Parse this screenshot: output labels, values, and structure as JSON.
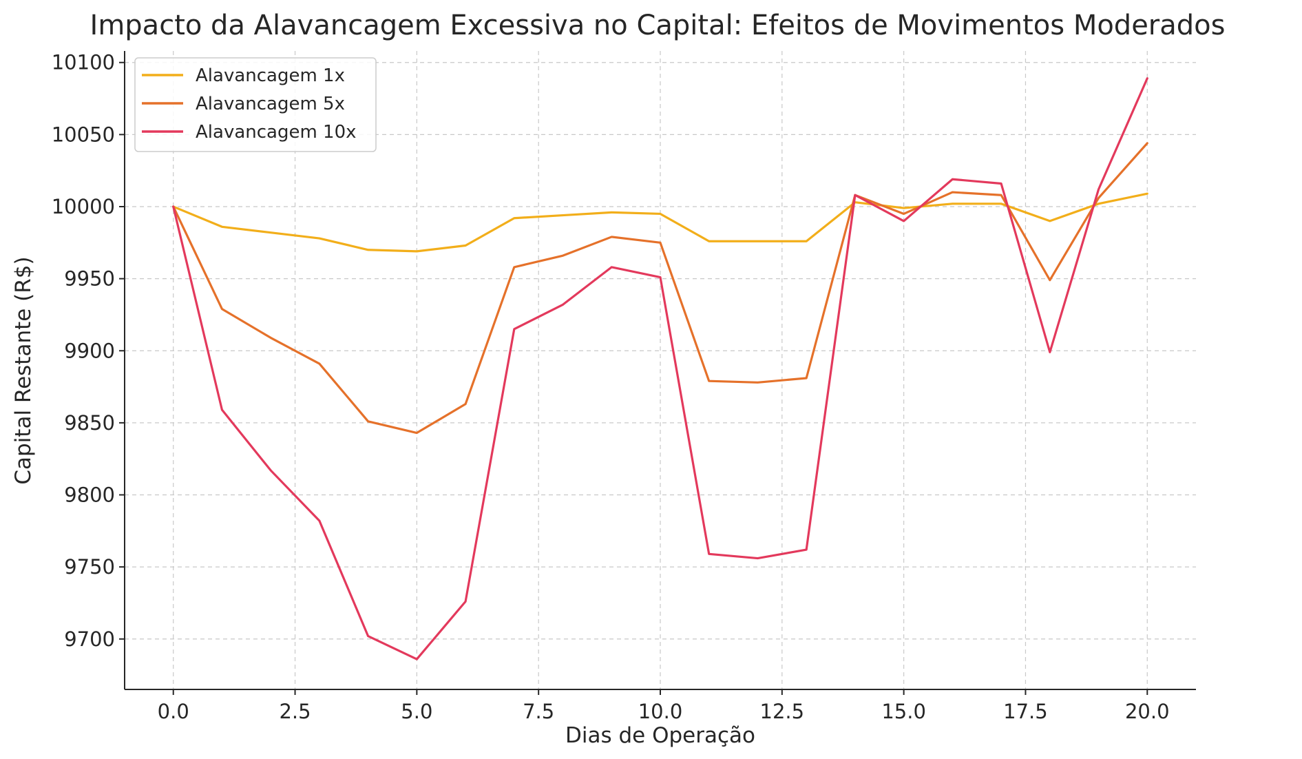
{
  "chart_data": {
    "type": "line",
    "title": "Impacto da Alavancagem Excessiva no Capital: Efeitos de Movimentos Moderados",
    "xlabel": "Dias de Operação",
    "ylabel": "Capital Restante (R$)",
    "xlim": [
      -1,
      21
    ],
    "ylim": [
      9665,
      10108
    ],
    "xticks": [
      0.0,
      2.5,
      5.0,
      7.5,
      10.0,
      12.5,
      15.0,
      17.5,
      20.0
    ],
    "xtick_labels": [
      "0.0",
      "2.5",
      "5.0",
      "7.5",
      "10.0",
      "12.5",
      "15.0",
      "17.5",
      "20.0"
    ],
    "yticks": [
      9700,
      9750,
      9800,
      9850,
      9900,
      9950,
      10000,
      10050,
      10100
    ],
    "ytick_labels": [
      "9700",
      "9750",
      "9800",
      "9850",
      "9900",
      "9950",
      "10000",
      "10050",
      "10100"
    ],
    "grid": true,
    "legend_position": "top-left",
    "x": [
      0,
      1,
      2,
      3,
      4,
      5,
      6,
      7,
      8,
      9,
      10,
      11,
      12,
      13,
      14,
      15,
      16,
      17,
      18,
      19,
      20
    ],
    "series": [
      {
        "name": "Alavancagem 1x",
        "color": "#f2ae1a",
        "values": [
          10000,
          9986,
          9982,
          9978,
          9970,
          9969,
          9973,
          9992,
          9994,
          9996,
          9995,
          9976,
          9976,
          9976,
          10003,
          9999,
          10002,
          10002,
          9990,
          10002,
          10009
        ]
      },
      {
        "name": "Alavancagem 5x",
        "color": "#e5712a",
        "values": [
          10000,
          9929,
          9909,
          9891,
          9851,
          9843,
          9863,
          9958,
          9966,
          9979,
          9975,
          9879,
          9878,
          9881,
          10008,
          9995,
          10010,
          10008,
          9949,
          10006,
          10044
        ]
      },
      {
        "name": "Alavancagem 10x",
        "color": "#e3395c",
        "values": [
          10000,
          9859,
          9817,
          9782,
          9702,
          9686,
          9726,
          9915,
          9932,
          9958,
          9951,
          9759,
          9756,
          9762,
          10008,
          9990,
          10019,
          10016,
          9899,
          10012,
          10089
        ]
      }
    ]
  }
}
